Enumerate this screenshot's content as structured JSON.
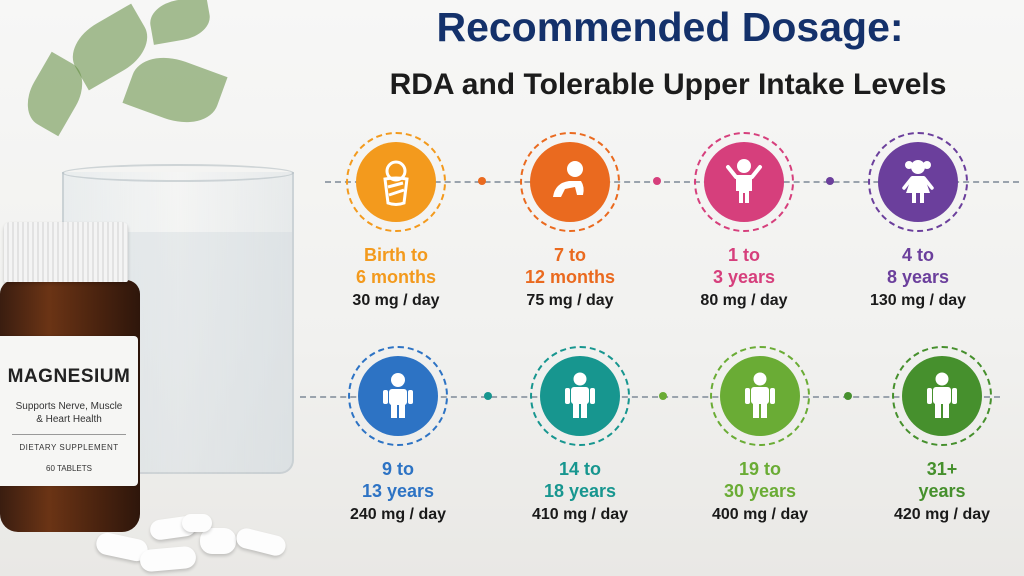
{
  "title": "Recommended Dosage:",
  "subtitle": "RDA and Tolerable Upper Intake Levels",
  "product": {
    "name": "MAGNESIUM",
    "tagline": "Supports Nerve, Muscle & Heart Health",
    "category": "DIETARY SUPPLEMENT",
    "count": "60 TABLETS"
  },
  "groups": [
    {
      "age": "Birth to\n6 months",
      "dose": "30 mg / day",
      "color": "#f39a1d",
      "icon": "swaddled-baby-icon"
    },
    {
      "age": "7 to\n12 months",
      "dose": "75 mg / day",
      "color": "#ea6a1f",
      "icon": "crawling-baby-icon"
    },
    {
      "age": "1 to\n3 years",
      "dose": "80 mg / day",
      "color": "#d63f7c",
      "icon": "toddler-icon"
    },
    {
      "age": "4 to\n8 years",
      "dose": "130 mg / day",
      "color": "#6b3f9c",
      "icon": "child-girl-icon"
    },
    {
      "age": "9 to\n13 years",
      "dose": "240 mg / day",
      "color": "#2d73c4",
      "icon": "child-icon"
    },
    {
      "age": "14 to\n18 years",
      "dose": "410 mg / day",
      "color": "#17968f",
      "icon": "teen-icon"
    },
    {
      "age": "19 to\n30 years",
      "dose": "400 mg / day",
      "color": "#6aac35",
      "icon": "adult-icon"
    },
    {
      "age": "31+\nyears",
      "dose": "420 mg / day",
      "color": "#46902d",
      "icon": "adult-icon"
    }
  ]
}
